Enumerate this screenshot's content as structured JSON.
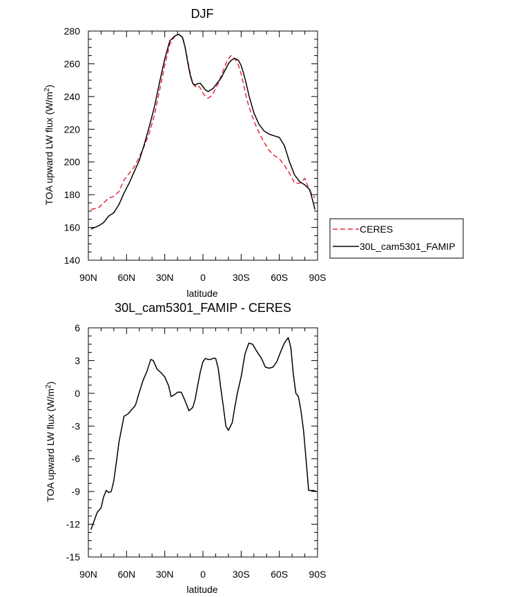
{
  "chart_data": [
    {
      "type": "line",
      "title": "DJF",
      "xlabel": "latitude",
      "ylabel": "TOA upward LW flux (W/m",
      "ylabel_sup": "2",
      "ylabel_end": ")",
      "xlim": [
        -90,
        90
      ],
      "ylim": [
        140,
        280
      ],
      "xticks": [
        -90,
        -60,
        -30,
        0,
        30,
        60,
        90
      ],
      "xtick_labels": [
        "90N",
        "60N",
        "30N",
        "0",
        "30S",
        "60S",
        "90S"
      ],
      "yticks": [
        140,
        160,
        180,
        200,
        220,
        240,
        260,
        280
      ],
      "ytick_labels": [
        "140",
        "160",
        "180",
        "200",
        "220",
        "240",
        "260",
        "280"
      ],
      "legend": "outside-right",
      "series": [
        {
          "name": "CERES",
          "color": "#e8283a",
          "dash": "dashed",
          "x": [
            -88,
            -82,
            -78,
            -74,
            -70,
            -66,
            -62,
            -58,
            -54,
            -50,
            -46,
            -42,
            -38,
            -34,
            -30,
            -26,
            -22,
            -19,
            -16,
            -14,
            -12,
            -10,
            -8,
            -6,
            -4,
            -2,
            0,
            2,
            4,
            6,
            8,
            10,
            12,
            14,
            16,
            18,
            20,
            22,
            24,
            26,
            28,
            30,
            32,
            34,
            36,
            40,
            44,
            48,
            52,
            56,
            60,
            64,
            68,
            72,
            76,
            80,
            84,
            88
          ],
          "y": [
            171,
            172,
            175,
            178,
            179,
            182,
            189,
            193,
            197,
            203,
            210,
            218,
            229,
            244,
            259,
            272,
            277,
            278,
            276,
            270,
            262,
            254,
            248,
            246,
            247,
            245,
            242,
            240,
            239,
            240,
            242,
            245,
            248,
            252,
            256,
            260,
            263,
            265,
            264,
            262,
            259,
            254,
            247,
            240,
            234,
            225,
            218,
            212,
            207,
            204,
            202,
            198,
            193,
            187,
            187,
            190,
            182,
            178
          ]
        },
        {
          "name": "30L_cam5301_FAMIP",
          "color": "#000000",
          "dash": "solid",
          "x": [
            -88,
            -82,
            -78,
            -74,
            -70,
            -66,
            -62,
            -58,
            -54,
            -50,
            -46,
            -42,
            -38,
            -34,
            -30,
            -26,
            -22,
            -19,
            -16,
            -14,
            -12,
            -10,
            -8,
            -6,
            -4,
            -2,
            0,
            2,
            4,
            6,
            8,
            10,
            12,
            14,
            16,
            18,
            20,
            22,
            24,
            26,
            28,
            30,
            32,
            34,
            36,
            40,
            44,
            48,
            52,
            56,
            60,
            64,
            68,
            72,
            76,
            80,
            84,
            88
          ],
          "y": [
            159,
            161,
            163,
            167,
            169,
            174,
            181,
            187,
            194,
            201,
            211,
            222,
            234,
            249,
            263,
            274,
            277,
            278,
            276,
            270,
            261,
            253,
            248,
            247,
            248,
            248,
            246,
            244,
            243,
            244,
            245,
            247,
            249,
            251,
            254,
            257,
            260,
            262,
            263,
            263,
            262,
            259,
            254,
            248,
            241,
            230,
            223,
            219,
            217,
            216,
            215,
            210,
            200,
            192,
            188,
            186,
            183,
            171
          ]
        }
      ]
    },
    {
      "type": "line",
      "title": "30L_cam5301_FAMIP - CERES",
      "xlabel": "latitude",
      "ylabel": "TOA upward LW flux (W/m",
      "ylabel_sup": "2",
      "ylabel_end": ")",
      "xlim": [
        -90,
        90
      ],
      "ylim": [
        -15,
        6
      ],
      "xticks": [
        -90,
        -60,
        -30,
        0,
        30,
        60,
        90
      ],
      "xtick_labels": [
        "90N",
        "60N",
        "30N",
        "0",
        "30S",
        "60S",
        "90S"
      ],
      "yticks": [
        -15,
        -12,
        -9,
        -6,
        -3,
        0,
        3,
        6
      ],
      "ytick_labels": [
        "-15",
        "-12",
        "-9",
        "-6",
        "-3",
        "0",
        "3",
        "6"
      ],
      "series": [
        {
          "name": "30L_cam5301_FAMIP - CERES",
          "color": "#000000",
          "dash": "solid",
          "x": [
            -88,
            -83,
            -80,
            -78,
            -76,
            -74,
            -72,
            -70,
            -68,
            -66,
            -62,
            -59,
            -56,
            -53,
            -50,
            -47,
            -44,
            -41,
            -39,
            -36,
            -33,
            -30,
            -27,
            -25,
            -22,
            -20,
            -17,
            -14,
            -11,
            -8,
            -6,
            -4,
            -2,
            0,
            2,
            4,
            6,
            8,
            10,
            12,
            14,
            16,
            18,
            20,
            23,
            25,
            27,
            30,
            33,
            36,
            39,
            42,
            46,
            49,
            52,
            55,
            58,
            61,
            64,
            67,
            69,
            71,
            73,
            75,
            77,
            79,
            81,
            83,
            85,
            87,
            89
          ],
          "y": [
            -12.5,
            -10.9,
            -10.5,
            -9.5,
            -8.9,
            -9.1,
            -9.0,
            -8.0,
            -6.3,
            -4.5,
            -2.1,
            -1.9,
            -1.5,
            -1.1,
            0.1,
            1.2,
            2.0,
            3.1,
            3.0,
            2.2,
            1.9,
            1.5,
            0.7,
            -0.3,
            -0.1,
            0.1,
            0.1,
            -0.7,
            -1.6,
            -1.3,
            -0.5,
            0.8,
            2.0,
            2.9,
            3.2,
            3.1,
            3.1,
            3.2,
            3.2,
            2.3,
            0.5,
            -1.2,
            -3.0,
            -3.4,
            -2.7,
            -1.3,
            0.0,
            1.5,
            3.6,
            4.6,
            4.5,
            3.9,
            3.2,
            2.4,
            2.3,
            2.4,
            2.9,
            3.8,
            4.6,
            5.1,
            4.2,
            1.7,
            0.0,
            -0.3,
            -1.6,
            -3.4,
            -6.1,
            -8.9,
            -8.9,
            -8.9,
            -9.0
          ]
        }
      ]
    }
  ]
}
